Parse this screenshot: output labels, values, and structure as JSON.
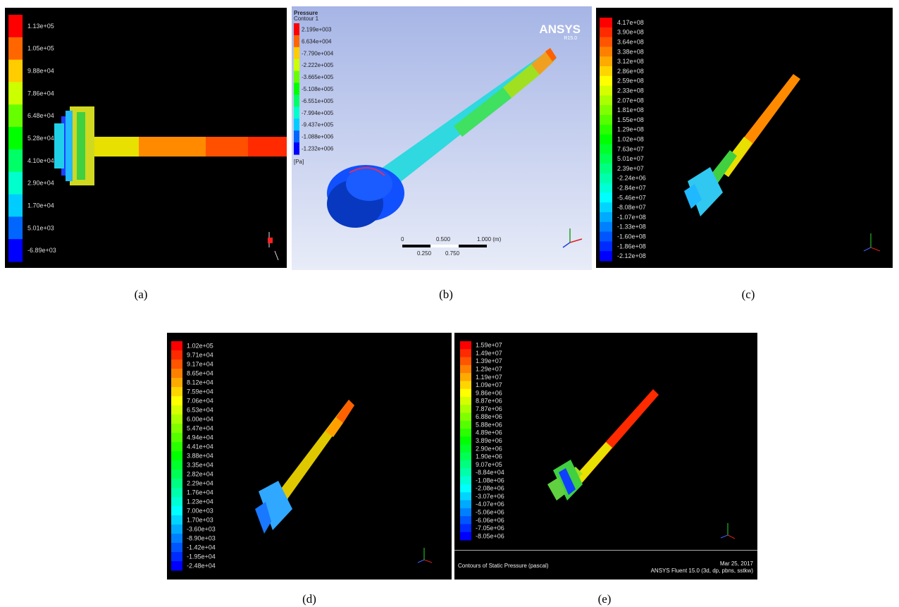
{
  "panels": {
    "a": {
      "caption": "(a)",
      "legend": [
        "1.13e+05",
        "1.05e+05",
        "9.88e+04",
        "7.86e+04",
        "6.48e+04",
        "5.28e+04",
        "4.10e+04",
        "2.90e+04",
        "1.70e+04",
        "5.01e+03",
        "-6.89e+03"
      ]
    },
    "b": {
      "caption": "(b)",
      "title": "Pressure",
      "subtitle": "Contour 1",
      "unit": "[Pa]",
      "brand": "ANSYS",
      "version": "R15.0",
      "legend": [
        "2.199e+003",
        "6.634e+004",
        "-7.790e+004",
        "-2.222e+005",
        "-3.665e+005",
        "-5.108e+005",
        "-6.551e+005",
        "-7.994e+005",
        "-9.437e+005",
        "-1.088e+006",
        "-1.232e+006"
      ],
      "scale": {
        "top": [
          "0",
          "0.500",
          "1.000 (m)"
        ],
        "bottom": [
          "0.250",
          "0.750"
        ]
      }
    },
    "c": {
      "caption": "(c)",
      "legend": [
        "4.17e+08",
        "3.90e+08",
        "3.64e+08",
        "3.38e+08",
        "3.12e+08",
        "2.86e+08",
        "2.59e+08",
        "2.33e+08",
        "2.07e+08",
        "1.81e+08",
        "1.55e+08",
        "1.29e+08",
        "1.02e+08",
        "7.63e+07",
        "5.01e+07",
        "2.39e+07",
        "-2.24e+06",
        "-2.84e+07",
        "-5.46e+07",
        "-8.08e+07",
        "-1.07e+08",
        "-1.33e+08",
        "-1.60e+08",
        "-1.86e+08",
        "-2.12e+08"
      ]
    },
    "d": {
      "caption": "(d)",
      "legend": [
        "1.02e+05",
        "9.71e+04",
        "9.17e+04",
        "8.65e+04",
        "8.12e+04",
        "7.59e+04",
        "7.06e+04",
        "6.53e+04",
        "6.00e+04",
        "5.47e+04",
        "4.94e+04",
        "4.41e+04",
        "3.88e+04",
        "3.35e+04",
        "2.82e+04",
        "2.29e+04",
        "1.76e+04",
        "1.23e+04",
        "7.00e+03",
        "1.70e+03",
        "-3.60e+03",
        "-8.90e+03",
        "-1.42e+04",
        "-1.95e+04",
        "-2.48e+04"
      ]
    },
    "e": {
      "caption": "(e)",
      "legend": [
        "1.59e+07",
        "1.49e+07",
        "1.39e+07",
        "1.29e+07",
        "1.19e+07",
        "1.09e+07",
        "9.86e+06",
        "8.87e+06",
        "7.87e+06",
        "6.88e+06",
        "5.88e+06",
        "4.89e+06",
        "3.89e+06",
        "2.90e+06",
        "1.90e+06",
        "9.07e+05",
        "-8.84e+04",
        "-1.08e+06",
        "-2.08e+06",
        "-3.07e+06",
        "-4.07e+06",
        "-5.06e+06",
        "-6.06e+06",
        "-7.05e+06",
        "-8.05e+06"
      ],
      "banner_left": "Contours of Static Pressure (pascal)",
      "banner_date": "Mar 25, 2017",
      "banner_solver": "ANSYS Fluent 15.0 (3d, dp, pbns, sstkw)"
    }
  },
  "colors": {
    "background_dark": "#000000",
    "background_b": "#a9b8e6",
    "contour_red": "#ff1a00",
    "contour_orange": "#ff7a00",
    "contour_yellow": "#e8e000",
    "contour_green": "#30d000",
    "contour_cyan": "#20d0e8",
    "contour_blue": "#1040ff"
  }
}
